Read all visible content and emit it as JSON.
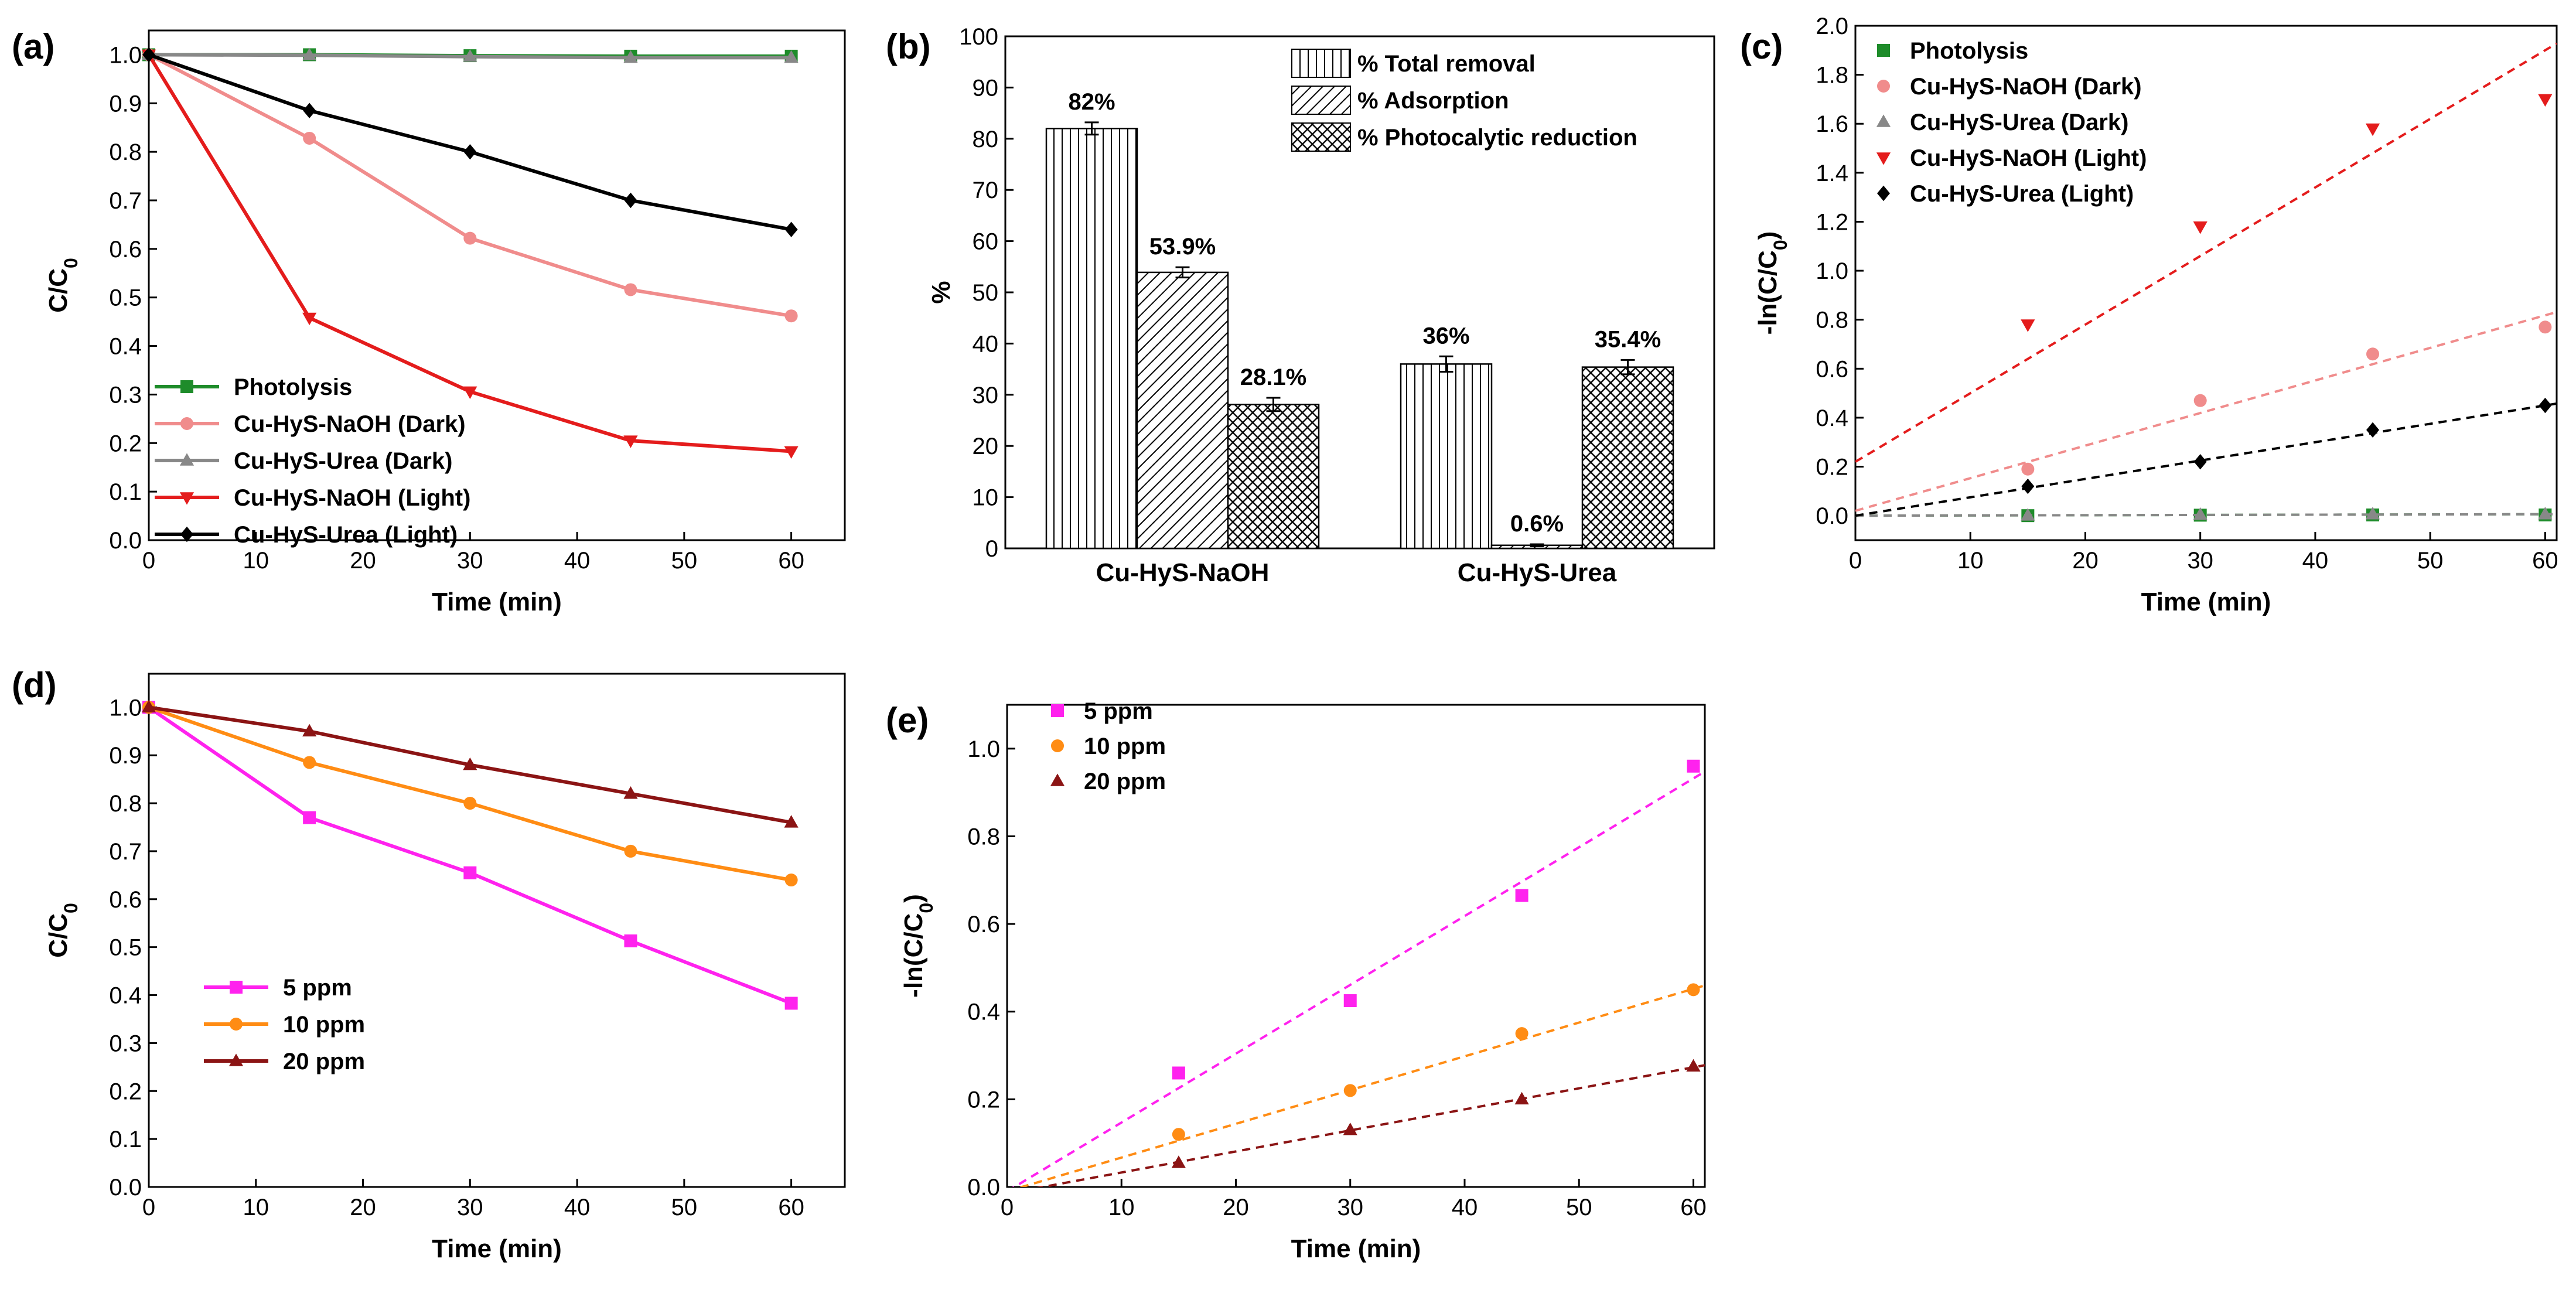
{
  "chart_data": [
    {
      "panel": "(a)",
      "type": "line",
      "xlabel": "Time (min)",
      "ylabel": "C/C0",
      "xlim": [
        0,
        65
      ],
      "ylim": [
        0,
        1.05
      ],
      "x": [
        0,
        15,
        30,
        45,
        60
      ],
      "xticks": [
        0,
        10,
        20,
        30,
        40,
        50,
        60
      ],
      "yticks": [
        0.0,
        0.1,
        0.2,
        0.3,
        0.4,
        0.5,
        0.6,
        0.7,
        0.8,
        0.9,
        1.0
      ],
      "legend_position": "bottom-left",
      "series": [
        {
          "name": "Photolysis",
          "color": "#1e8c2a",
          "marker": "square",
          "values": [
            1.0,
            1.0,
            0.998,
            0.997,
            0.997
          ]
        },
        {
          "name": "Cu-HyS-NaOH (Dark)",
          "color": "#f08c8c",
          "marker": "circle",
          "values": [
            1.0,
            0.828,
            0.622,
            0.516,
            0.462
          ]
        },
        {
          "name": "Cu-HyS-Urea (Dark)",
          "color": "#888888",
          "marker": "triangle-up",
          "values": [
            1.0,
            0.999,
            0.996,
            0.994,
            0.994
          ]
        },
        {
          "name": "Cu-HyS-NaOH (Light)",
          "color": "#e41c1c",
          "marker": "triangle-down",
          "values": [
            1.0,
            0.458,
            0.306,
            0.205,
            0.183
          ]
        },
        {
          "name": "Cu-HyS-Urea (Light)",
          "color": "#000000",
          "marker": "diamond",
          "values": [
            1.0,
            0.885,
            0.8,
            0.7,
            0.64
          ]
        }
      ]
    },
    {
      "panel": "(b)",
      "type": "bar",
      "ylabel": "%",
      "ylim": [
        0,
        100
      ],
      "yticks": [
        0,
        10,
        20,
        30,
        40,
        50,
        60,
        70,
        80,
        90,
        100
      ],
      "categories": [
        "Cu-HyS-NaOH",
        "Cu-HyS-Urea"
      ],
      "legend_position": "top-right",
      "series": [
        {
          "name": "% Total removal",
          "pattern": "vertical",
          "values": [
            82,
            36
          ],
          "errors": [
            1.2,
            1.5
          ],
          "labels": [
            "82%",
            "36%"
          ]
        },
        {
          "name": "% Adsorption",
          "pattern": "diagonal",
          "values": [
            53.9,
            0.6
          ],
          "errors": [
            1.0,
            0.2
          ],
          "labels": [
            "53.9%",
            "0.6%"
          ]
        },
        {
          "name": "% Photocalytic reduction",
          "pattern": "crosshatch",
          "values": [
            28.1,
            35.4
          ],
          "errors": [
            1.3,
            1.4
          ],
          "labels": [
            "28.1%",
            "35.4%"
          ]
        }
      ]
    },
    {
      "panel": "(c)",
      "type": "scatter",
      "xlabel": "Time (min)",
      "ylabel": "-ln(C/C0)",
      "xlim": [
        0,
        61
      ],
      "ylim": [
        -0.1,
        2.0
      ],
      "x": [
        15,
        30,
        45,
        60
      ],
      "xticks": [
        0,
        10,
        20,
        30,
        40,
        50,
        60
      ],
      "yticks": [
        0.0,
        0.2,
        0.4,
        0.6,
        0.8,
        1.0,
        1.2,
        1.4,
        1.6,
        1.8,
        2.0
      ],
      "legend_position": "top-left",
      "series": [
        {
          "name": "Photolysis",
          "color": "#1e8c2a",
          "marker": "square",
          "values": [
            0.0,
            0.002,
            0.003,
            0.003
          ],
          "fit": [
            0.0,
            0.0001
          ]
        },
        {
          "name": "Cu-HyS-NaOH (Dark)",
          "color": "#f08c8c",
          "marker": "circle",
          "values": [
            0.19,
            0.47,
            0.66,
            0.77
          ],
          "fit": [
            0.02,
            0.0133
          ]
        },
        {
          "name": "Cu-HyS-Urea (Dark)",
          "color": "#888888",
          "marker": "triangle-up",
          "values": [
            0.001,
            0.004,
            0.006,
            0.006
          ],
          "fit": [
            0.0,
            0.0001
          ]
        },
        {
          "name": "Cu-HyS-NaOH (Light)",
          "color": "#e41c1c",
          "marker": "triangle-down",
          "values": [
            0.78,
            1.18,
            1.58,
            1.7
          ],
          "fit": [
            0.22,
            0.028
          ]
        },
        {
          "name": "Cu-HyS-Urea (Light)",
          "color": "#000000",
          "marker": "diamond",
          "values": [
            0.12,
            0.22,
            0.35,
            0.45
          ],
          "fit": [
            0.0,
            0.0075
          ]
        }
      ]
    },
    {
      "panel": "(d)",
      "type": "line",
      "xlabel": "Time (min)",
      "ylabel": "C/C0",
      "xlim": [
        0,
        65
      ],
      "ylim": [
        0,
        1.07
      ],
      "x": [
        0,
        15,
        30,
        45,
        60
      ],
      "xticks": [
        0,
        10,
        20,
        30,
        40,
        50,
        60
      ],
      "yticks": [
        0.0,
        0.1,
        0.2,
        0.3,
        0.4,
        0.5,
        0.6,
        0.7,
        0.8,
        0.9,
        1.0
      ],
      "legend_position": "middle-left",
      "series": [
        {
          "name": "5 ppm",
          "color": "#ff22ee",
          "marker": "square",
          "values": [
            1.0,
            0.77,
            0.655,
            0.513,
            0.383
          ]
        },
        {
          "name": "10 ppm",
          "color": "#ff8c14",
          "marker": "circle",
          "values": [
            1.0,
            0.885,
            0.8,
            0.7,
            0.64
          ]
        },
        {
          "name": "20 ppm",
          "color": "#8b1414",
          "marker": "triangle-up",
          "values": [
            1.0,
            0.95,
            0.88,
            0.82,
            0.76
          ]
        }
      ]
    },
    {
      "panel": "(e)",
      "type": "scatter",
      "xlabel": "Time (min)",
      "ylabel": "-ln(C/C0)",
      "xlim": [
        0,
        61
      ],
      "ylim": [
        0,
        1.1
      ],
      "x": [
        15,
        30,
        45,
        60
      ],
      "xticks": [
        0,
        10,
        20,
        30,
        40,
        50,
        60
      ],
      "yticks": [
        0.0,
        0.2,
        0.4,
        0.6,
        0.8,
        1.0
      ],
      "legend_position": "top-left",
      "series": [
        {
          "name": "5 ppm",
          "color": "#ff22ee",
          "marker": "square",
          "values": [
            0.26,
            0.425,
            0.665,
            0.96
          ],
          "fit": [
            -0.01,
            0.0157
          ]
        },
        {
          "name": "10 ppm",
          "color": "#ff8c14",
          "marker": "circle",
          "values": [
            0.12,
            0.22,
            0.35,
            0.45
          ],
          "fit": [
            -0.01,
            0.0077
          ]
        },
        {
          "name": "20 ppm",
          "color": "#8b1414",
          "marker": "triangle-up",
          "values": [
            0.055,
            0.13,
            0.2,
            0.275
          ],
          "fit": [
            -0.015,
            0.0048
          ]
        }
      ]
    }
  ]
}
